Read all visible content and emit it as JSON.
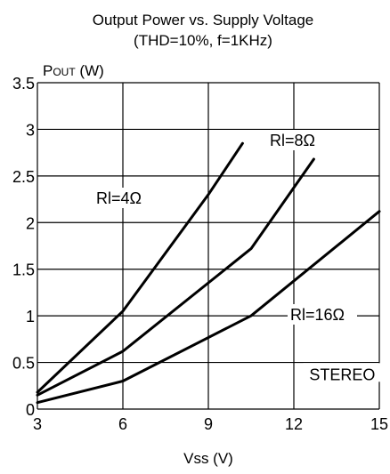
{
  "chart_data": {
    "type": "line",
    "title": "Output Power vs. Supply Voltage",
    "subtitle": "(THD=10%, f=1KHz)",
    "ylabel": "POUT (W)",
    "xlabel": "Vss (V)",
    "xlim": [
      3,
      15
    ],
    "ylim": [
      0,
      3.5
    ],
    "x_ticks": [
      3,
      6,
      9,
      12,
      15
    ],
    "x_tick_labels": [
      "3",
      "6",
      "9",
      "12",
      "15"
    ],
    "y_ticks": [
      0,
      0.5,
      1,
      1.5,
      2,
      2.5,
      3,
      3.5
    ],
    "y_tick_labels": [
      "0",
      "0.5",
      "1",
      "1.5",
      "2",
      "2.5",
      "3",
      "3.5"
    ],
    "grid": true,
    "series": [
      {
        "name": "Rl=4Ω",
        "x": [
          3,
          6,
          9,
          10.2
        ],
        "y": [
          0.18,
          1.05,
          2.3,
          2.85
        ]
      },
      {
        "name": "Rl=8Ω",
        "x": [
          3,
          6,
          10.5,
          12.7
        ],
        "y": [
          0.15,
          0.62,
          1.72,
          2.68
        ]
      },
      {
        "name": "Rl=16Ω",
        "x": [
          3,
          6,
          10.5,
          15
        ],
        "y": [
          0.07,
          0.3,
          1.0,
          2.12
        ]
      }
    ],
    "annotations": [
      {
        "text": "STEREO",
        "x": 13.7,
        "y": 0.35
      }
    ],
    "colors": {
      "line": "#000000",
      "grid": "#000000",
      "background": "#ffffff"
    }
  }
}
